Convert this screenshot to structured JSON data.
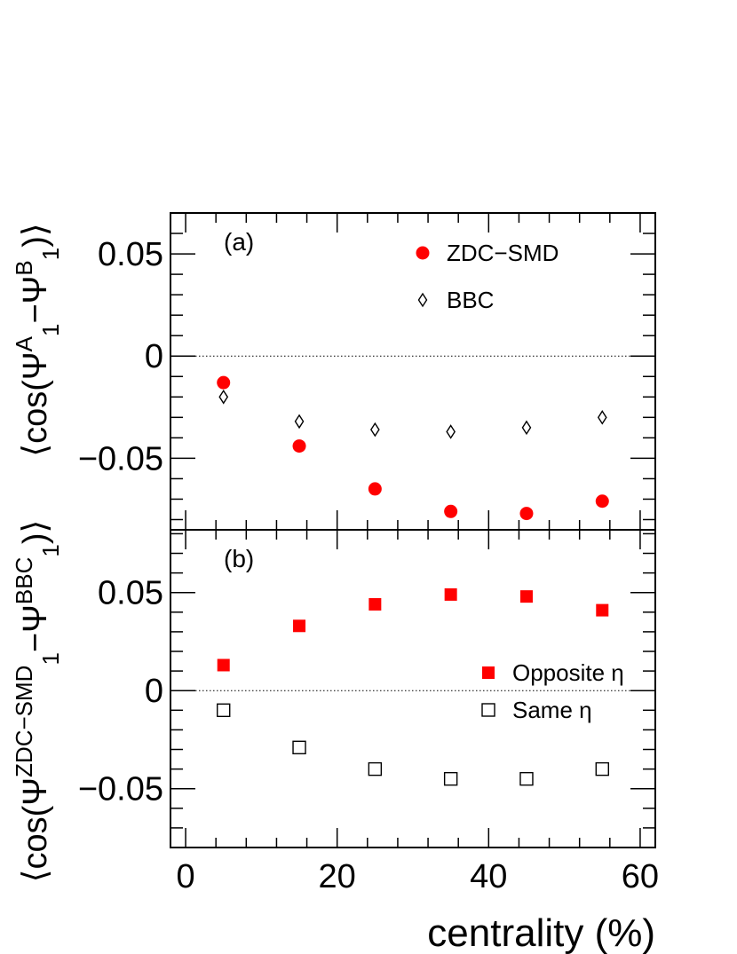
{
  "chart_data": [
    {
      "type": "scatter",
      "panel_label": "(a)",
      "ylabel_parts": {
        "open": "⟨cos(Ψ",
        "sup1": "A",
        "sub1": "1",
        "minus": "−Ψ",
        "sup2": "B",
        "sub2": "1",
        "close": ")⟩"
      },
      "xlim": [
        -2,
        62
      ],
      "ylim": [
        -0.085,
        0.07
      ],
      "yticks": [
        0.05,
        0,
        -0.05
      ],
      "ytick_labels": [
        "0.05",
        "0",
        "−0.05"
      ],
      "reference_line": 0,
      "legend_position": "top-right",
      "series": [
        {
          "name": "ZDC−SMD",
          "marker": "filled-circle",
          "color": "#ff0000",
          "x": [
            5,
            15,
            25,
            35,
            45,
            55
          ],
          "y": [
            -0.013,
            -0.044,
            -0.065,
            -0.076,
            -0.077,
            -0.071
          ]
        },
        {
          "name": "BBC",
          "marker": "open-diamond",
          "color": "#000000",
          "x": [
            5,
            15,
            25,
            35,
            45,
            55
          ],
          "y": [
            -0.02,
            -0.032,
            -0.036,
            -0.037,
            -0.035,
            -0.03
          ]
        }
      ]
    },
    {
      "type": "scatter",
      "panel_label": "(b)",
      "ylabel_parts": {
        "open": "⟨cos(Ψ",
        "sup1": "ZDC−SMD",
        "sub1": "1",
        "minus": "−Ψ",
        "sup2": "BBC",
        "sub2": "1",
        "close": ")⟩"
      },
      "xlim": [
        -2,
        62
      ],
      "ylim": [
        -0.08,
        0.082
      ],
      "yticks": [
        0.05,
        0,
        -0.05
      ],
      "ytick_labels": [
        "0.05",
        "0",
        "−0.05"
      ],
      "xticks": [
        0,
        20,
        40,
        60
      ],
      "xtick_labels": [
        "0",
        "20",
        "40",
        "60"
      ],
      "xlabel": "centrality (%)",
      "reference_line": 0,
      "legend_position": "right",
      "series": [
        {
          "name": "Opposite η",
          "marker": "filled-square",
          "color": "#ff0000",
          "x": [
            5,
            15,
            25,
            35,
            45,
            55
          ],
          "y": [
            0.013,
            0.033,
            0.044,
            0.049,
            0.048,
            0.041
          ]
        },
        {
          "name": "Same η",
          "marker": "open-square",
          "color": "#000000",
          "x": [
            5,
            15,
            25,
            35,
            45,
            55
          ],
          "y": [
            -0.01,
            -0.029,
            -0.04,
            -0.045,
            -0.045,
            -0.04
          ]
        }
      ]
    }
  ]
}
